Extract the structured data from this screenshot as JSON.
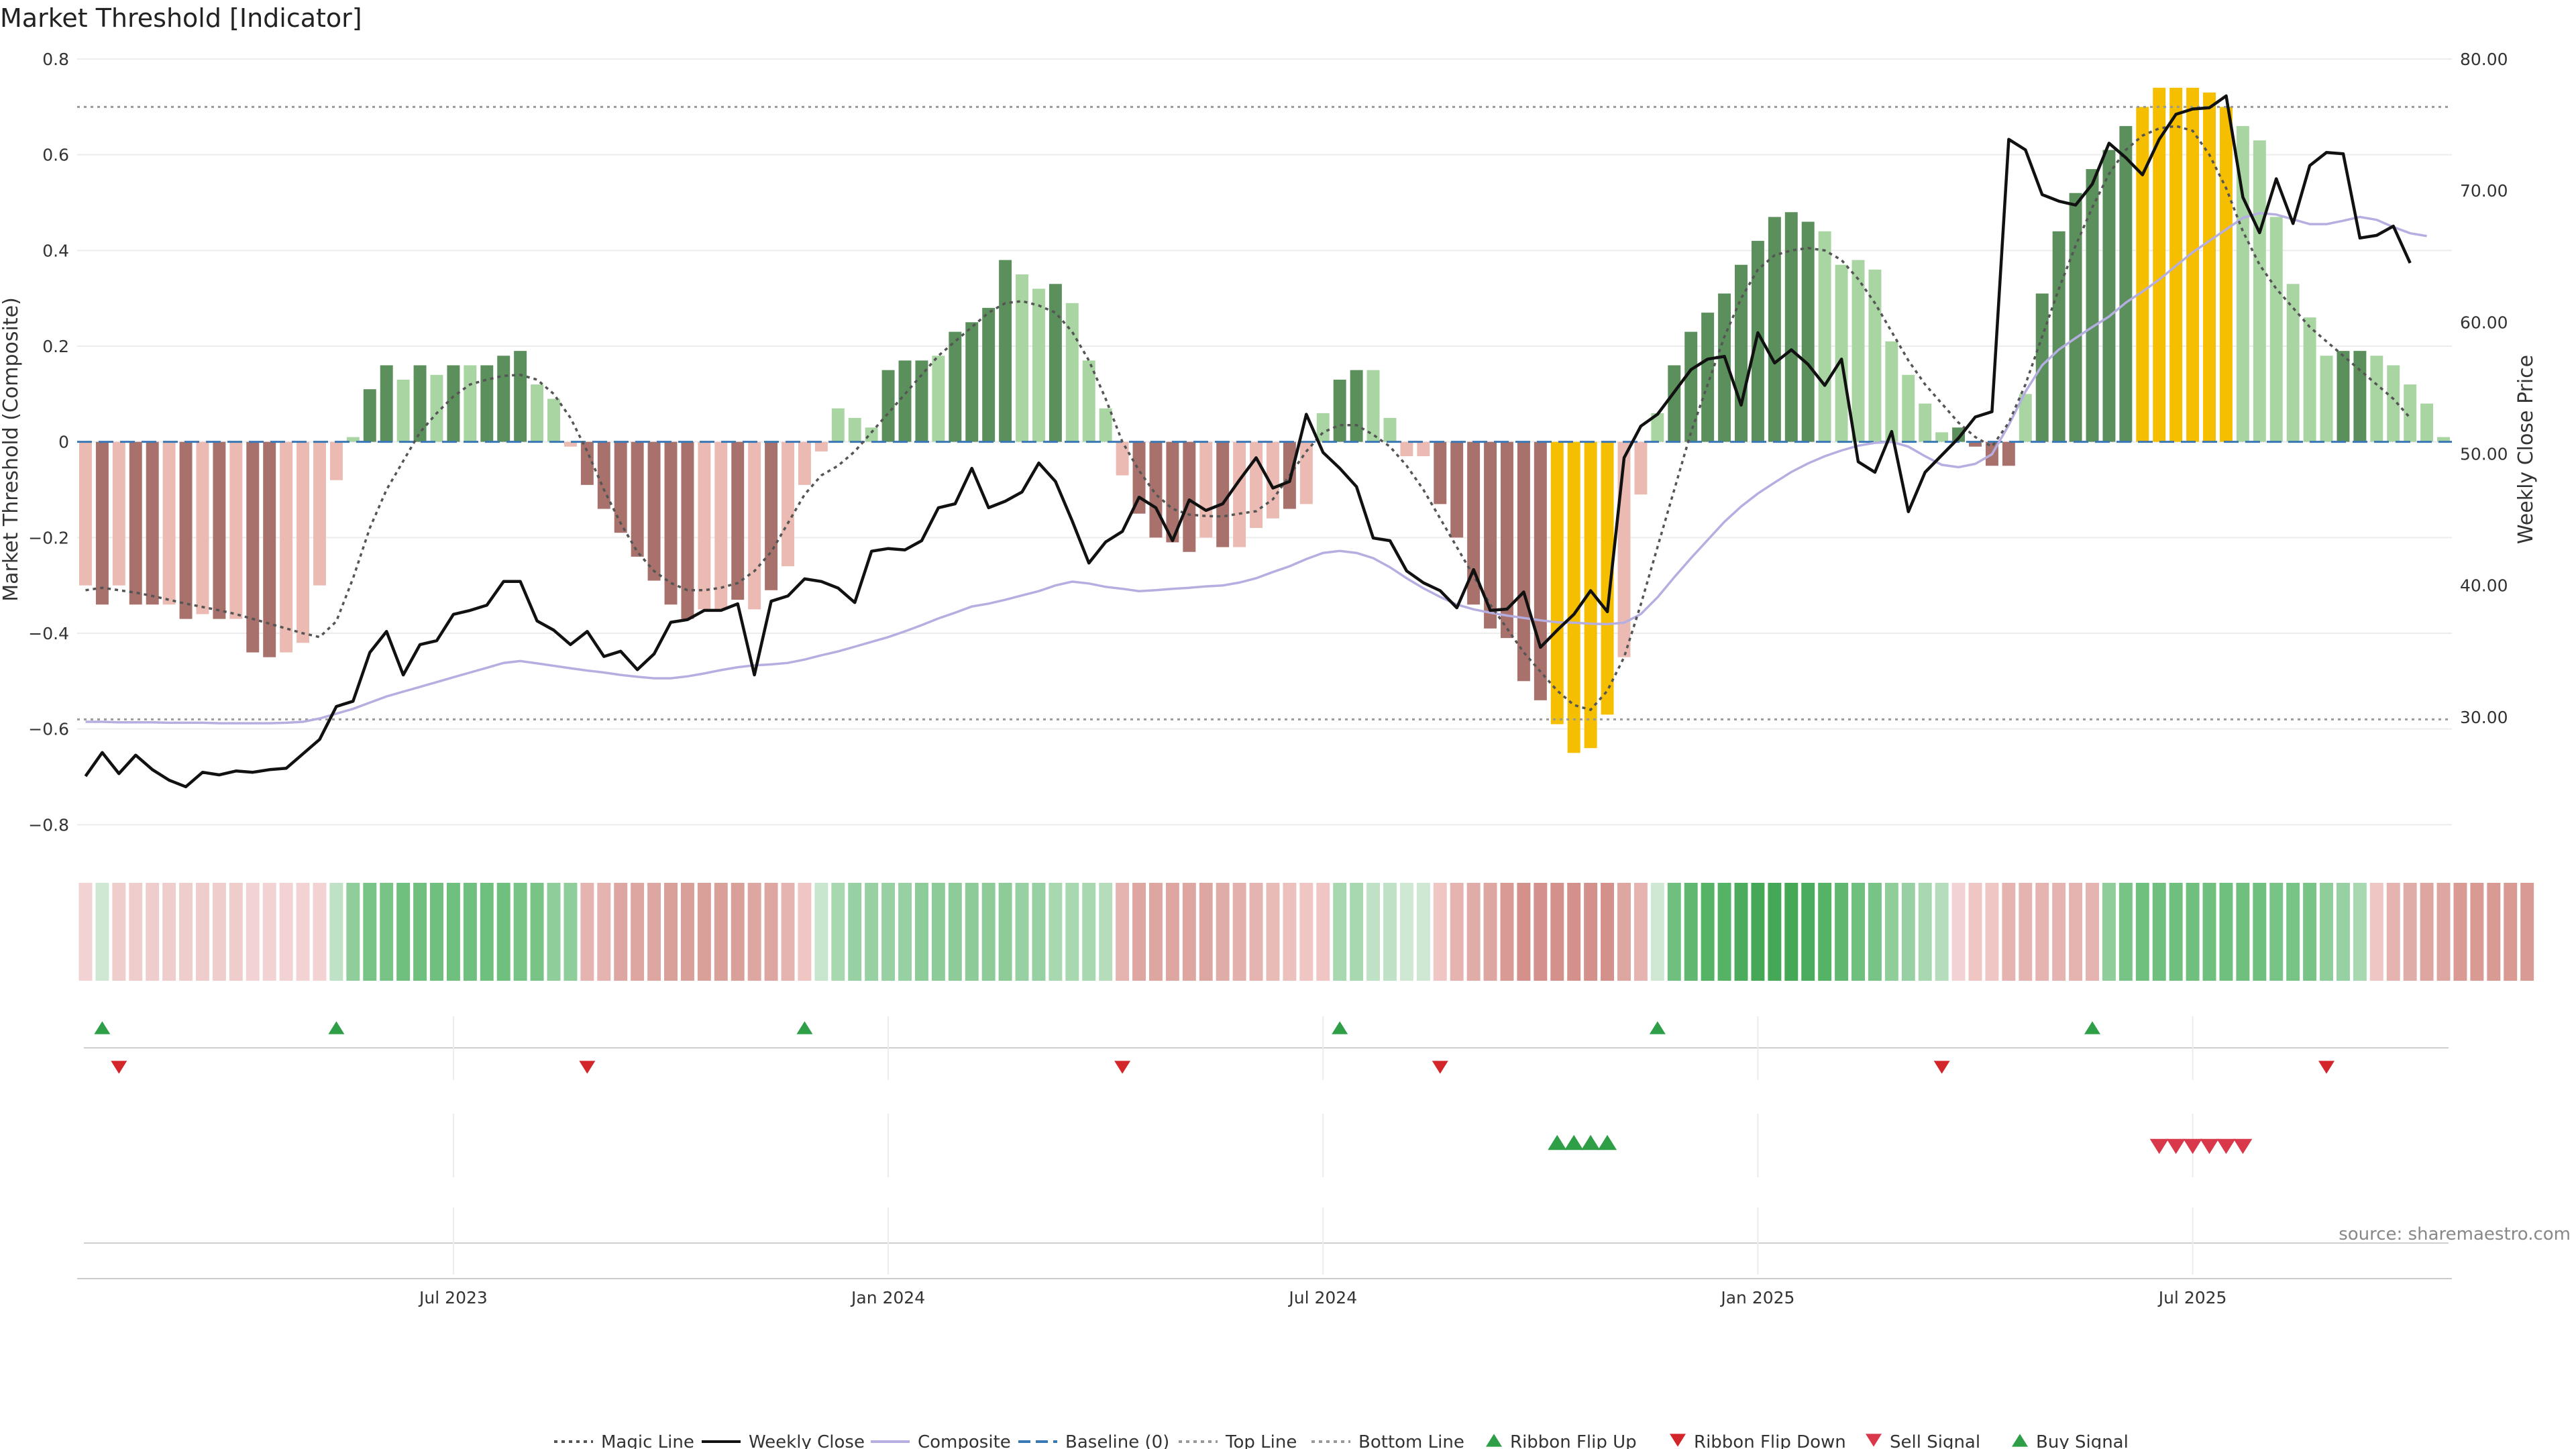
{
  "title": "Market Threshold [Indicator]",
  "source": "source: sharemaestro.com",
  "colors": {
    "pos_strong": "#5b8f5c",
    "pos_light": "#a8d5a2",
    "neg_strong": "#a8716c",
    "neg_light": "#ebbbb3",
    "extreme": "#f5bf00",
    "close": "#111111",
    "composite": "#b5aee0",
    "magic": "#555555",
    "baseline": "#3a78b5",
    "threshold": "#999999",
    "up_marker": "#2e9e47",
    "down_marker": "#d2262b",
    "sell_marker": "#d9384a"
  },
  "chart_data": {
    "type": "bar+line",
    "ylabel_left": "Market Threshold (Composite)",
    "ylabel_right": "Weekly Close Price",
    "ylim_left": [
      -0.85,
      0.8
    ],
    "ylim_right": [
      20,
      80
    ],
    "yticks_left": [
      "0.8",
      "0.6",
      "0.4",
      "0.2",
      "0",
      "−0.2",
      "−0.4",
      "−0.6",
      "−0.8"
    ],
    "yticks_left_values": [
      0.8,
      0.6,
      0.4,
      0.2,
      0,
      -0.2,
      -0.4,
      -0.6,
      -0.8
    ],
    "yticks_right": [
      "80.00",
      "70.00",
      "60.00",
      "50.00",
      "40.00",
      "30.00"
    ],
    "yticks_right_values": [
      80,
      70,
      60,
      50,
      40,
      30
    ],
    "x_tick_labels": [
      "Jul 2023",
      "Jan 2024",
      "Jul 2024",
      "Jan 2025",
      "Jul 2025"
    ],
    "x_tick_weeks": [
      22,
      48,
      74,
      100,
      126
    ],
    "top_line": 0.7,
    "bottom_line": -0.58,
    "baseline": 0,
    "bars": [
      -0.3,
      -0.34,
      -0.3,
      -0.34,
      -0.34,
      -0.34,
      -0.37,
      -0.36,
      -0.37,
      -0.37,
      -0.44,
      -0.45,
      -0.44,
      -0.42,
      -0.3,
      -0.08,
      0.01,
      0.11,
      0.16,
      0.13,
      0.16,
      0.14,
      0.16,
      0.16,
      0.16,
      0.18,
      0.19,
      0.12,
      0.09,
      -0.01,
      -0.09,
      -0.14,
      -0.19,
      -0.24,
      -0.29,
      -0.34,
      -0.37,
      -0.35,
      -0.35,
      -0.33,
      -0.35,
      -0.31,
      -0.26,
      -0.09,
      -0.02,
      0.07,
      0.05,
      0.03,
      0.15,
      0.17,
      0.17,
      0.18,
      0.23,
      0.25,
      0.28,
      0.38,
      0.35,
      0.32,
      0.33,
      0.29,
      0.17,
      0.07,
      -0.07,
      -0.15,
      -0.2,
      -0.21,
      -0.23,
      -0.2,
      -0.22,
      -0.22,
      -0.18,
      -0.16,
      -0.14,
      -0.13,
      0.06,
      0.13,
      0.15,
      0.15,
      0.05,
      -0.03,
      -0.03,
      -0.13,
      -0.2,
      -0.34,
      -0.39,
      -0.41,
      -0.5,
      -0.54,
      -0.59,
      -0.65,
      -0.64,
      -0.57,
      -0.45,
      -0.11,
      0.06,
      0.16,
      0.23,
      0.27,
      0.31,
      0.37,
      0.42,
      0.47,
      0.48,
      0.46,
      0.44,
      0.37,
      0.38,
      0.36,
      0.21,
      0.14,
      0.08,
      0.02,
      0.03,
      -0.01,
      -0.05,
      -0.05,
      0.1,
      0.31,
      0.44,
      0.52,
      0.57,
      0.61,
      0.66,
      0.7,
      0.74,
      0.74,
      0.74,
      0.73,
      0.7,
      0.66,
      0.63,
      0.47,
      0.33,
      0.26,
      0.18,
      0.19,
      0.19,
      0.18,
      0.16,
      0.12,
      0.08,
      0.01
    ],
    "bar_category": [
      "nl",
      "nd",
      "nl",
      "nd",
      "nd",
      "nl",
      "nd",
      "nl",
      "nd",
      "nl",
      "nd",
      "nd",
      "nl",
      "nl",
      "nl",
      "nl",
      "pl",
      "pd",
      "pd",
      "pl",
      "pd",
      "pl",
      "pd",
      "pl",
      "pd",
      "pd",
      "pd",
      "pl",
      "pl",
      "nl",
      "nd",
      "nd",
      "nd",
      "nd",
      "nd",
      "nd",
      "nd",
      "nl",
      "nl",
      "nd",
      "nl",
      "nd",
      "nl",
      "nl",
      "nl",
      "pl",
      "pl",
      "pl",
      "pd",
      "pd",
      "pd",
      "pl",
      "pd",
      "pd",
      "pd",
      "pd",
      "pl",
      "pl",
      "pd",
      "pl",
      "pl",
      "pl",
      "nl",
      "nd",
      "nd",
      "nd",
      "nd",
      "nl",
      "nd",
      "nl",
      "nl",
      "nl",
      "nd",
      "nl",
      "pl",
      "pd",
      "pd",
      "pl",
      "pl",
      "nl",
      "nl",
      "nd",
      "nd",
      "nd",
      "nd",
      "nd",
      "nd",
      "nd",
      "ye",
      "ye",
      "ye",
      "ye",
      "nl",
      "nl",
      "pl",
      "pd",
      "pd",
      "pd",
      "pd",
      "pd",
      "pd",
      "pd",
      "pd",
      "pd",
      "pl",
      "pl",
      "pl",
      "pl",
      "pl",
      "pl",
      "pl",
      "pl",
      "pd",
      "nd",
      "nd",
      "nd",
      "pl",
      "pd",
      "pd",
      "pd",
      "pd",
      "pd",
      "pd",
      "ye",
      "ye",
      "ye",
      "ye",
      "ye",
      "ye",
      "pl",
      "pl",
      "pl",
      "pl",
      "pl",
      "pl",
      "pd",
      "pd",
      "pl",
      "pl",
      "pl",
      "pl",
      "pl"
    ],
    "weekly_close": [
      25.5,
      27.3,
      25.7,
      27.1,
      26.0,
      25.2,
      24.7,
      25.8,
      25.6,
      25.9,
      25.8,
      26.0,
      26.1,
      27.2,
      28.3,
      30.8,
      31.2,
      34.9,
      36.5,
      33.2,
      35.5,
      35.8,
      37.8,
      38.1,
      38.5,
      40.3,
      40.3,
      37.3,
      36.6,
      35.5,
      36.5,
      34.6,
      35.0,
      33.6,
      34.8,
      37.2,
      37.4,
      38.1,
      38.1,
      38.6,
      33.2,
      38.8,
      39.2,
      40.5,
      40.3,
      39.8,
      38.7,
      42.6,
      42.8,
      42.7,
      43.4,
      45.9,
      46.2,
      48.9,
      45.9,
      46.4,
      47.1,
      49.3,
      47.9,
      44.9,
      41.7,
      43.3,
      44.1,
      46.7,
      45.9,
      43.4,
      46.5,
      45.7,
      46.2,
      48.0,
      49.7,
      47.4,
      47.9,
      53.0,
      50.1,
      48.9,
      47.5,
      43.6,
      43.4,
      41.1,
      40.2,
      39.6,
      38.3,
      41.2,
      38.1,
      38.2,
      39.5,
      35.3,
      36.6,
      37.8,
      39.6,
      38.0,
      49.7,
      52.1,
      53.0,
      54.7,
      56.4,
      57.2,
      57.4,
      53.7,
      59.2,
      56.9,
      57.9,
      56.8,
      55.2,
      57.2,
      49.4,
      48.6,
      51.7,
      45.6,
      48.6,
      49.9,
      51.2,
      52.8,
      53.2,
      73.9,
      73.1,
      69.7,
      69.2,
      68.9,
      70.5,
      73.6,
      72.5,
      71.2,
      73.9,
      75.8,
      76.2,
      76.3,
      77.2,
      69.5,
      66.8,
      70.9,
      67.5,
      71.9,
      72.9,
      72.8,
      66.4,
      66.6,
      67.3,
      64.5
    ],
    "composite": [
      -0.585,
      -0.585,
      -0.586,
      -0.586,
      -0.586,
      -0.587,
      -0.587,
      -0.587,
      -0.588,
      -0.588,
      -0.588,
      -0.588,
      -0.587,
      -0.585,
      -0.578,
      -0.568,
      -0.558,
      -0.545,
      -0.532,
      -0.522,
      -0.512,
      -0.502,
      -0.492,
      -0.482,
      -0.472,
      -0.462,
      -0.458,
      -0.463,
      -0.468,
      -0.473,
      -0.478,
      -0.482,
      -0.487,
      -0.491,
      -0.494,
      -0.494,
      -0.49,
      -0.484,
      -0.477,
      -0.471,
      -0.467,
      -0.465,
      -0.462,
      -0.455,
      -0.446,
      -0.438,
      -0.428,
      -0.418,
      -0.408,
      -0.396,
      -0.383,
      -0.369,
      -0.357,
      -0.344,
      -0.338,
      -0.33,
      -0.321,
      -0.312,
      -0.3,
      -0.292,
      -0.296,
      -0.303,
      -0.307,
      -0.312,
      -0.31,
      -0.307,
      -0.305,
      -0.302,
      -0.3,
      -0.294,
      -0.285,
      -0.272,
      -0.26,
      -0.245,
      -0.232,
      -0.228,
      -0.232,
      -0.243,
      -0.262,
      -0.285,
      -0.306,
      -0.324,
      -0.34,
      -0.35,
      -0.357,
      -0.363,
      -0.368,
      -0.373,
      -0.377,
      -0.378,
      -0.38,
      -0.381,
      -0.378,
      -0.36,
      -0.325,
      -0.283,
      -0.243,
      -0.205,
      -0.167,
      -0.135,
      -0.108,
      -0.085,
      -0.063,
      -0.045,
      -0.03,
      -0.018,
      -0.008,
      -0.002,
      0.0,
      -0.01,
      -0.03,
      -0.048,
      -0.053,
      -0.046,
      -0.026,
      0.035,
      0.105,
      0.16,
      0.193,
      0.217,
      0.24,
      0.262,
      0.291,
      0.314,
      0.339,
      0.368,
      0.396,
      0.42,
      0.444,
      0.468,
      0.478,
      0.475,
      0.465,
      0.455,
      0.455,
      0.462,
      0.47,
      0.464,
      0.449,
      0.436,
      0.43
    ],
    "magic_line": [
      -0.31,
      -0.305,
      -0.31,
      -0.315,
      -0.322,
      -0.33,
      -0.338,
      -0.345,
      -0.352,
      -0.36,
      -0.37,
      -0.38,
      -0.39,
      -0.4,
      -0.408,
      -0.375,
      -0.285,
      -0.18,
      -0.1,
      -0.04,
      0.02,
      0.06,
      0.095,
      0.12,
      0.13,
      0.138,
      0.14,
      0.13,
      0.1,
      0.05,
      -0.02,
      -0.1,
      -0.17,
      -0.23,
      -0.27,
      -0.295,
      -0.31,
      -0.31,
      -0.305,
      -0.295,
      -0.27,
      -0.23,
      -0.17,
      -0.11,
      -0.07,
      -0.05,
      -0.02,
      0.02,
      0.06,
      0.1,
      0.14,
      0.18,
      0.21,
      0.24,
      0.27,
      0.29,
      0.294,
      0.285,
      0.27,
      0.23,
      0.17,
      0.09,
      0.0,
      -0.06,
      -0.11,
      -0.14,
      -0.152,
      -0.155,
      -0.156,
      -0.15,
      -0.145,
      -0.12,
      -0.07,
      -0.02,
      0.02,
      0.035,
      0.035,
      0.015,
      -0.01,
      -0.05,
      -0.1,
      -0.16,
      -0.22,
      -0.28,
      -0.34,
      -0.39,
      -0.44,
      -0.48,
      -0.52,
      -0.55,
      -0.56,
      -0.52,
      -0.45,
      -0.34,
      -0.22,
      -0.1,
      0.02,
      0.12,
      0.22,
      0.3,
      0.36,
      0.39,
      0.4,
      0.405,
      0.4,
      0.38,
      0.34,
      0.29,
      0.23,
      0.17,
      0.12,
      0.08,
      0.04,
      0.01,
      -0.01,
      0.04,
      0.12,
      0.22,
      0.32,
      0.41,
      0.49,
      0.56,
      0.61,
      0.64,
      0.655,
      0.66,
      0.65,
      0.6,
      0.53,
      0.44,
      0.37,
      0.32,
      0.28,
      0.24,
      0.21,
      0.18,
      0.15,
      0.12,
      0.09,
      0.05
    ],
    "ribbon": [
      "#f2d2d2",
      "#cfe8d4",
      "#efcdcd",
      "#efcdcd",
      "#efcdcd",
      "#efcdcd",
      "#efcdcd",
      "#efcdcd",
      "#efcdcd",
      "#efcdcd",
      "#f2d2d2",
      "#f2d2d2",
      "#f2d2d2",
      "#f2d2d2",
      "#f2d2d2",
      "#bfe1c5",
      "#8fcd9a",
      "#78c386",
      "#78c386",
      "#6fbf7e",
      "#6fbf7e",
      "#6fbf7e",
      "#6fbf7e",
      "#6fbf7e",
      "#6fbf7e",
      "#6fbf7e",
      "#78c386",
      "#78c386",
      "#8fcd9a",
      "#8fcd9a",
      "#e6b4b0",
      "#e6b4b0",
      "#dea6a1",
      "#dea6a1",
      "#dea6a1",
      "#d9a09a",
      "#d9a09a",
      "#d9a09a",
      "#d9a09a",
      "#d9a09a",
      "#dea6a1",
      "#dea6a1",
      "#e6b4b0",
      "#efc6c3",
      "#c8e6cd",
      "#a7d8b0",
      "#97d0a2",
      "#97d0a2",
      "#97d0a2",
      "#97d0a2",
      "#8dcb98",
      "#8dcb98",
      "#8dcb98",
      "#8dcb98",
      "#8dcb98",
      "#8dcb98",
      "#97d0a2",
      "#97d0a2",
      "#a7d8b0",
      "#a7d8b0",
      "#a7d8b0",
      "#b5ddbc",
      "#e6b4b0",
      "#dea6a1",
      "#dea6a1",
      "#dea6a1",
      "#dea6a1",
      "#dea6a1",
      "#e0aca7",
      "#e3b0ab",
      "#e6b4b0",
      "#e9bbb7",
      "#ecc1bd",
      "#efc6c3",
      "#efc6c3",
      "#a8d8b0",
      "#a8d8b0",
      "#bfe2c6",
      "#bfe2c6",
      "#cfe8d4",
      "#cfe8d4",
      "#efc6c3",
      "#e6b4b0",
      "#e0aca7",
      "#dea6a1",
      "#d99a94",
      "#d4908a",
      "#d4908a",
      "#d4908a",
      "#d4908a",
      "#d4908a",
      "#d4908a",
      "#dea6a1",
      "#e6b4b0",
      "#cfe8d4",
      "#6fbf7e",
      "#60b870",
      "#55b366",
      "#55b366",
      "#4aac5c",
      "#44a857",
      "#44a857",
      "#44a857",
      "#4aac5c",
      "#55b366",
      "#60b870",
      "#6fbf7e",
      "#78c386",
      "#8fcd9a",
      "#97d0a2",
      "#a7d8b0",
      "#b5ddbc",
      "#f2d2d2",
      "#efc6c3",
      "#efc6c3",
      "#e6b4b0",
      "#e6b4b0",
      "#e6b4b0",
      "#e6b4b0",
      "#e6b4b0",
      "#e6b4b0",
      "#8fcd9a",
      "#78c386",
      "#6fbf7e",
      "#6fbf7e",
      "#6fbf7e",
      "#6fbf7e",
      "#6fbf7e",
      "#6fbf7e",
      "#6fbf7e",
      "#6fbf7e",
      "#78c386",
      "#78c386",
      "#78c386",
      "#8fcd9a",
      "#97d0a2",
      "#a7d8b0",
      "#efc6c3",
      "#e6b4b0",
      "#e0aca7",
      "#dea6a1",
      "#dea6a1",
      "#d99a94",
      "#d99a94",
      "#d99a94",
      "#d99a94",
      "#d99a94"
    ],
    "ribbon_flip_up_weeks": [
      1,
      15,
      43,
      75,
      94,
      120
    ],
    "ribbon_flip_down_weeks": [
      2,
      30,
      62,
      81,
      111,
      134
    ],
    "buy_signal_weeks": [
      88,
      89,
      90,
      91
    ],
    "sell_signal_weeks": [
      124,
      125,
      126,
      127,
      128,
      129
    ]
  },
  "legend": [
    {
      "label": "Magic Line",
      "kind": "dotted",
      "color": "#555555"
    },
    {
      "label": "Weekly Close",
      "kind": "solid",
      "color": "#111111"
    },
    {
      "label": "Composite",
      "kind": "solid",
      "color": "#b5aee0"
    },
    {
      "label": "Baseline (0)",
      "kind": "dashed",
      "color": "#3a78b5"
    },
    {
      "label": "Top Line",
      "kind": "dotted",
      "color": "#999999"
    },
    {
      "label": "Bottom Line",
      "kind": "dotted",
      "color": "#999999"
    },
    {
      "label": "Ribbon Flip Up",
      "kind": "tri-up",
      "color": "#2e9e47"
    },
    {
      "label": "Ribbon Flip Down",
      "kind": "tri-down",
      "color": "#d2262b"
    },
    {
      "label": "Sell Signal",
      "kind": "tri-down",
      "color": "#d9384a"
    },
    {
      "label": "Buy Signal",
      "kind": "tri-up",
      "color": "#2e9e47"
    }
  ]
}
